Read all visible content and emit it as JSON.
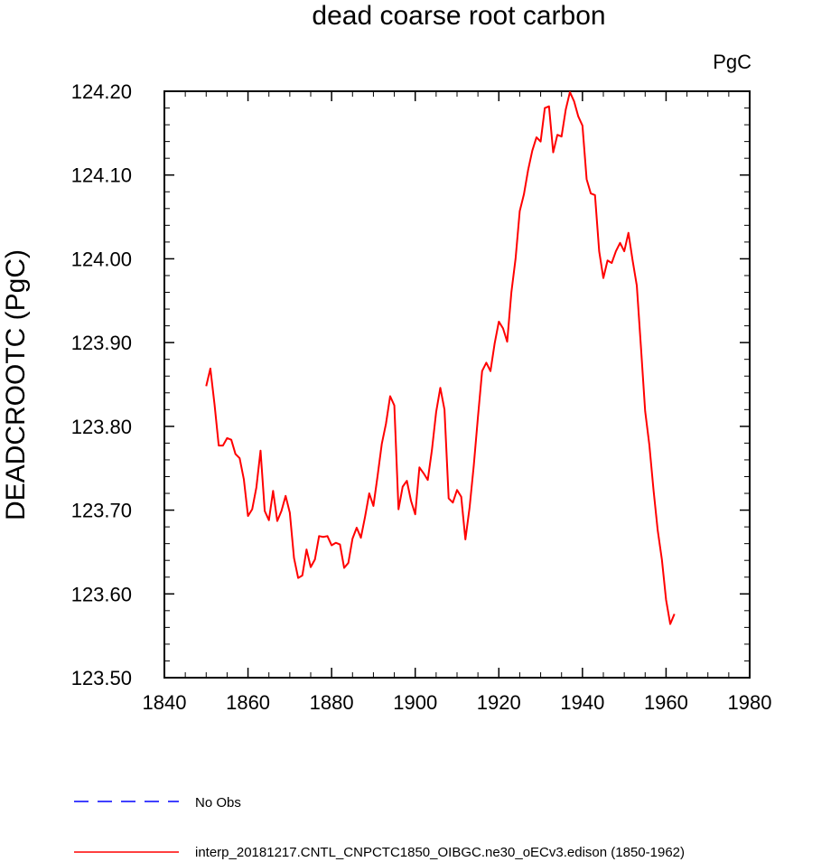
{
  "chart_data": {
    "type": "line",
    "title": "dead coarse root carbon",
    "units_label": "PgC",
    "ylabel": "DEADCROOTC  (PgC)",
    "xlabel": "",
    "xlim": [
      1840,
      1980
    ],
    "ylim": [
      123.5,
      124.2
    ],
    "x_ticks": [
      1840,
      1860,
      1880,
      1900,
      1920,
      1940,
      1960,
      1980
    ],
    "x_tick_labels": [
      "1840",
      "1860",
      "1880",
      "1900",
      "1920",
      "1940",
      "1960",
      "1980"
    ],
    "y_ticks": [
      123.5,
      123.6,
      123.7,
      123.8,
      123.9,
      124.0,
      124.1,
      124.2
    ],
    "y_tick_labels": [
      "123.50",
      "123.60",
      "123.70",
      "123.80",
      "123.90",
      "124.00",
      "124.10",
      "124.20"
    ],
    "grid": false,
    "legend_placement": "bottom",
    "legend": [
      {
        "label": "No Obs",
        "color": "#0000ff",
        "style": "dashed"
      },
      {
        "label": "interp_20181217.CNTL_CNPCTC1850_OIBGC.ne30_oECv3.edison (1850-1962)",
        "color": "#ff0000",
        "style": "solid"
      }
    ],
    "series": [
      {
        "name": "interp_20181217.CNTL_CNPCTC1850_OIBGC.ne30_oECv3.edison (1850-1962)",
        "color": "#ff0000",
        "x": [
          1850,
          1851,
          1852,
          1853,
          1854,
          1855,
          1856,
          1857,
          1858,
          1859,
          1860,
          1861,
          1862,
          1863,
          1864,
          1865,
          1866,
          1867,
          1868,
          1869,
          1870,
          1871,
          1872,
          1873,
          1874,
          1875,
          1876,
          1877,
          1878,
          1879,
          1880,
          1881,
          1882,
          1883,
          1884,
          1885,
          1886,
          1887,
          1888,
          1889,
          1890,
          1891,
          1892,
          1893,
          1894,
          1895,
          1896,
          1897,
          1898,
          1899,
          1900,
          1901,
          1902,
          1903,
          1904,
          1905,
          1906,
          1907,
          1908,
          1909,
          1910,
          1911,
          1912,
          1913,
          1914,
          1915,
          1916,
          1917,
          1918,
          1919,
          1920,
          1921,
          1922,
          1923,
          1924,
          1925,
          1926,
          1927,
          1928,
          1929,
          1930,
          1931,
          1932,
          1933,
          1934,
          1935,
          1936,
          1937,
          1938,
          1939,
          1940,
          1941,
          1942,
          1943,
          1944,
          1945,
          1946,
          1947,
          1948,
          1949,
          1950,
          1951,
          1952,
          1953,
          1954,
          1955,
          1956,
          1957,
          1958,
          1959,
          1960,
          1961,
          1962
        ],
        "values": [
          123.848,
          123.869,
          123.826,
          123.777,
          123.777,
          123.786,
          123.784,
          123.767,
          123.762,
          123.737,
          123.693,
          123.701,
          123.727,
          123.771,
          123.699,
          123.688,
          123.723,
          123.687,
          123.699,
          123.717,
          123.697,
          123.643,
          123.619,
          123.622,
          123.653,
          123.632,
          123.641,
          123.669,
          123.668,
          123.669,
          123.658,
          123.661,
          123.659,
          123.631,
          123.637,
          123.666,
          123.679,
          123.667,
          123.692,
          123.72,
          123.705,
          123.741,
          123.779,
          123.803,
          123.836,
          123.825,
          123.701,
          123.728,
          123.735,
          123.711,
          123.695,
          123.751,
          123.744,
          123.736,
          123.772,
          123.817,
          123.846,
          123.82,
          123.714,
          123.709,
          123.724,
          123.716,
          123.665,
          123.703,
          123.753,
          123.811,
          123.866,
          123.876,
          123.866,
          123.899,
          123.925,
          123.917,
          123.901,
          123.96,
          124.0,
          124.057,
          124.077,
          124.106,
          124.129,
          124.145,
          124.14,
          124.18,
          124.182,
          124.127,
          124.148,
          124.146,
          124.178,
          124.199,
          124.188,
          124.17,
          124.159,
          124.095,
          124.078,
          124.076,
          124.009,
          123.977,
          123.998,
          123.995,
          124.009,
          124.019,
          124.009,
          124.031,
          123.998,
          123.968,
          123.894,
          123.818,
          123.778,
          123.724,
          123.676,
          123.641,
          123.593,
          123.564,
          123.576
        ]
      }
    ]
  }
}
